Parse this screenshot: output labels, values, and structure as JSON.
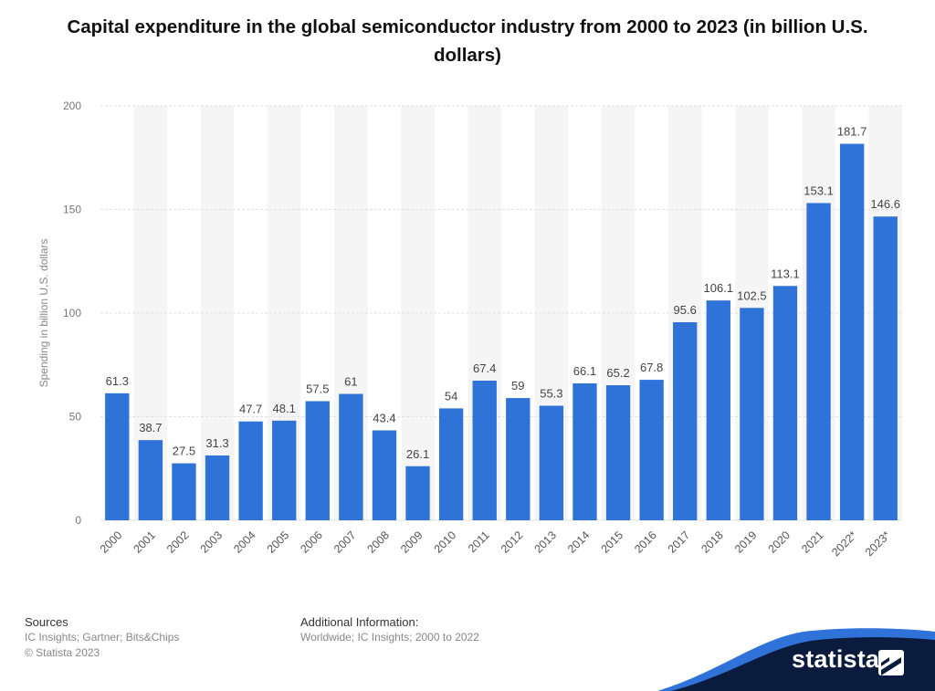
{
  "title": "Capital expenditure in the global semiconductor industry from 2000 to 2023 (in billion U.S. dollars)",
  "chart_data": {
    "type": "bar",
    "title": "Capital expenditure in the global semiconductor industry from 2000 to 2023 (in billion U.S. dollars)",
    "ylabel": "Spending in billion U.S. dollars",
    "xlabel": "",
    "ylim": [
      0,
      200
    ],
    "yticks": [
      0,
      50,
      100,
      150,
      200
    ],
    "grid": true,
    "categories": [
      "2000",
      "2001",
      "2002",
      "2003",
      "2004",
      "2005",
      "2006",
      "2007",
      "2008",
      "2009",
      "2010",
      "2011",
      "2012",
      "2013",
      "2014",
      "2015",
      "2016",
      "2017",
      "2018",
      "2019",
      "2020",
      "2021",
      "2022*",
      "2023*"
    ],
    "values": [
      61.3,
      38.7,
      27.5,
      31.3,
      47.7,
      48.1,
      57.5,
      61,
      43.4,
      26.1,
      54,
      67.4,
      59,
      55.3,
      66.1,
      65.2,
      67.8,
      95.6,
      106.1,
      102.5,
      113.1,
      153.1,
      181.7,
      146.6
    ],
    "bar_color": "#2f72d8"
  },
  "footer": {
    "sources_heading": "Sources",
    "sources_text": "IC Insights; Gartner; Bits&Chips",
    "copyright": "© Statista 2023",
    "additional_heading": "Additional Information:",
    "additional_text": "Worldwide; IC Insights; 2000 to 2022"
  },
  "brand": {
    "name": "statista",
    "color": "#0b1b3d",
    "accent": "#2f72d8"
  }
}
